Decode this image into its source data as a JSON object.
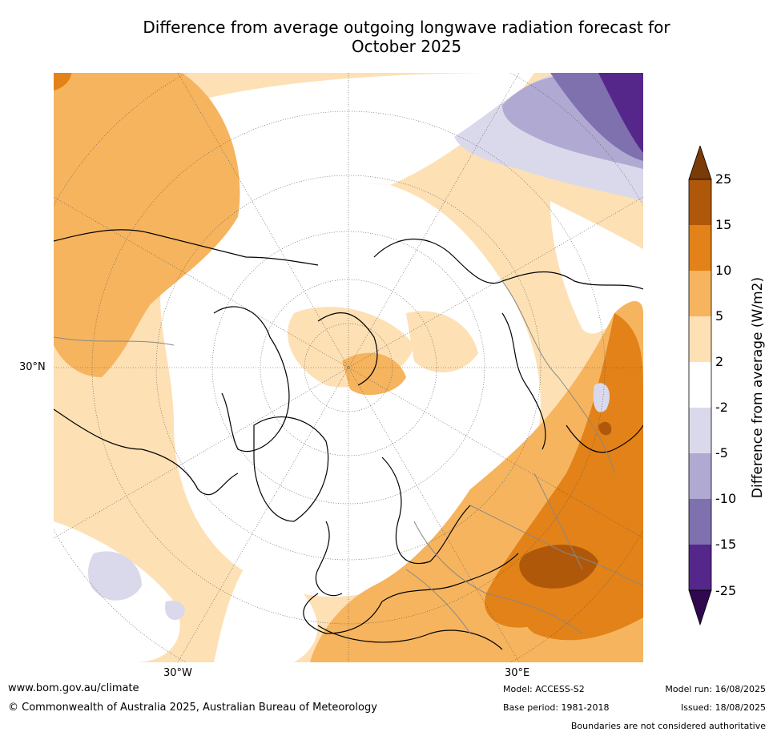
{
  "title_line1": "Difference from average outgoing longwave radiation forecast for",
  "title_line2": "October 2025",
  "map": {
    "projection": "north polar stereographic",
    "lat_label": "30°N",
    "lon_labels": [
      "30°W",
      "30°E"
    ]
  },
  "legend": {
    "title": "Difference from average (W/m2)",
    "ticks": [
      "25",
      "15",
      "10",
      "5",
      "2",
      "-2",
      "-5",
      "-10",
      "-15",
      "-25"
    ],
    "colors": [
      "#7a3b06",
      "#b0580a",
      "#e28218",
      "#f6b45e",
      "#fde0b4",
      "#ffffff",
      "#d9d9eb",
      "#b0a9d1",
      "#7e71ae",
      "#55278a",
      "#30084f"
    ]
  },
  "footer": {
    "website": "www.bom.gov.au/climate",
    "copyright": "© Commonwealth of Australia 2025, Australian Bureau of Meteorology",
    "model": "Model: ACCESS-S2",
    "base_period": "Base period: 1981-2018",
    "model_run": "Model run: 16/08/2025",
    "issued": "Issued: 18/08/2025",
    "disclaimer": "Boundaries are not considered authoritative"
  }
}
